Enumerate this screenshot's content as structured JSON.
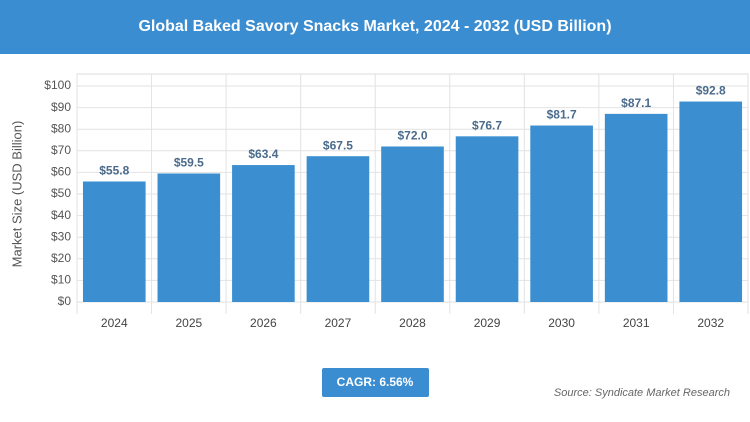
{
  "chart_data": {
    "type": "bar",
    "title": "Global Baked Savory Snacks Market, 2024 - 2032 (USD Billion)",
    "y_label": "Market Size (USD Billion)",
    "categories": [
      "2024",
      "2025",
      "2026",
      "2027",
      "2028",
      "2029",
      "2030",
      "2031",
      "2032"
    ],
    "values": [
      55.8,
      59.5,
      63.4,
      67.5,
      72.0,
      76.7,
      81.7,
      87.1,
      92.8
    ],
    "value_labels": [
      "$55.8",
      "$59.5",
      "$63.4",
      "$67.5",
      "$72.0",
      "$76.7",
      "$81.7",
      "$87.1",
      "$92.8"
    ],
    "color": "#3b8fd0",
    "ylim": [
      0,
      100
    ],
    "yticks": [
      {
        "value": 0,
        "label": "$0"
      },
      {
        "value": 10,
        "label": "$10"
      },
      {
        "value": 20,
        "label": "$20"
      },
      {
        "value": 30,
        "label": "$30"
      },
      {
        "value": 40,
        "label": "$40"
      },
      {
        "value": 50,
        "label": "$50"
      },
      {
        "value": 60,
        "label": "$60"
      },
      {
        "value": 70,
        "label": "$70"
      },
      {
        "value": 80,
        "label": "$80"
      },
      {
        "value": 90,
        "label": "$90"
      },
      {
        "value": 100,
        "label": "$100"
      }
    ],
    "grid": true,
    "cagr": "CAGR: 6.56%",
    "source": "Source: Syndicate Market Research"
  }
}
